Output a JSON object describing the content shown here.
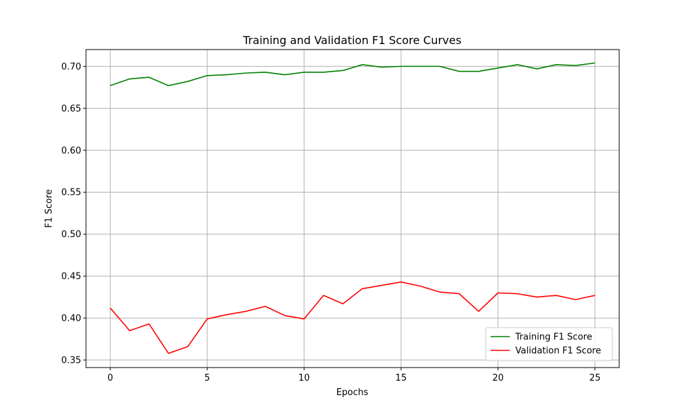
{
  "chart_data": {
    "type": "line",
    "title": "Training and Validation F1 Score Curves",
    "xlabel": "Epochs",
    "ylabel": "F1 Score",
    "xlim": [
      -1.25,
      26.25
    ],
    "ylim": [
      0.341,
      0.72
    ],
    "xticks": [
      0,
      5,
      10,
      15,
      20,
      25
    ],
    "yticks": [
      0.35,
      0.4,
      0.45,
      0.5,
      0.55,
      0.6,
      0.65,
      0.7
    ],
    "xtick_labels": [
      "0",
      "5",
      "10",
      "15",
      "20",
      "25"
    ],
    "ytick_labels": [
      "0.35",
      "0.40",
      "0.45",
      "0.50",
      "0.55",
      "0.60",
      "0.65",
      "0.70"
    ],
    "grid": true,
    "legend_position": "bottom-right",
    "x": [
      0,
      1,
      2,
      3,
      4,
      5,
      6,
      7,
      8,
      9,
      10,
      11,
      12,
      13,
      14,
      15,
      16,
      17,
      18,
      19,
      20,
      21,
      22,
      23,
      24,
      25
    ],
    "series": [
      {
        "name": "Training F1 Score",
        "color": "#008000",
        "values": [
          0.677,
          0.685,
          0.687,
          0.677,
          0.682,
          0.689,
          0.69,
          0.692,
          0.693,
          0.69,
          0.693,
          0.693,
          0.695,
          0.702,
          0.699,
          0.7,
          0.7,
          0.7,
          0.694,
          0.694,
          0.698,
          0.702,
          0.697,
          0.702,
          0.701,
          0.704
        ]
      },
      {
        "name": "Validation F1 Score",
        "color": "#ff0000",
        "values": [
          0.412,
          0.385,
          0.393,
          0.358,
          0.366,
          0.399,
          0.404,
          0.408,
          0.414,
          0.403,
          0.399,
          0.427,
          0.417,
          0.435,
          0.439,
          0.443,
          0.438,
          0.431,
          0.429,
          0.408,
          0.43,
          0.429,
          0.425,
          0.427,
          0.422,
          0.427
        ]
      }
    ]
  }
}
